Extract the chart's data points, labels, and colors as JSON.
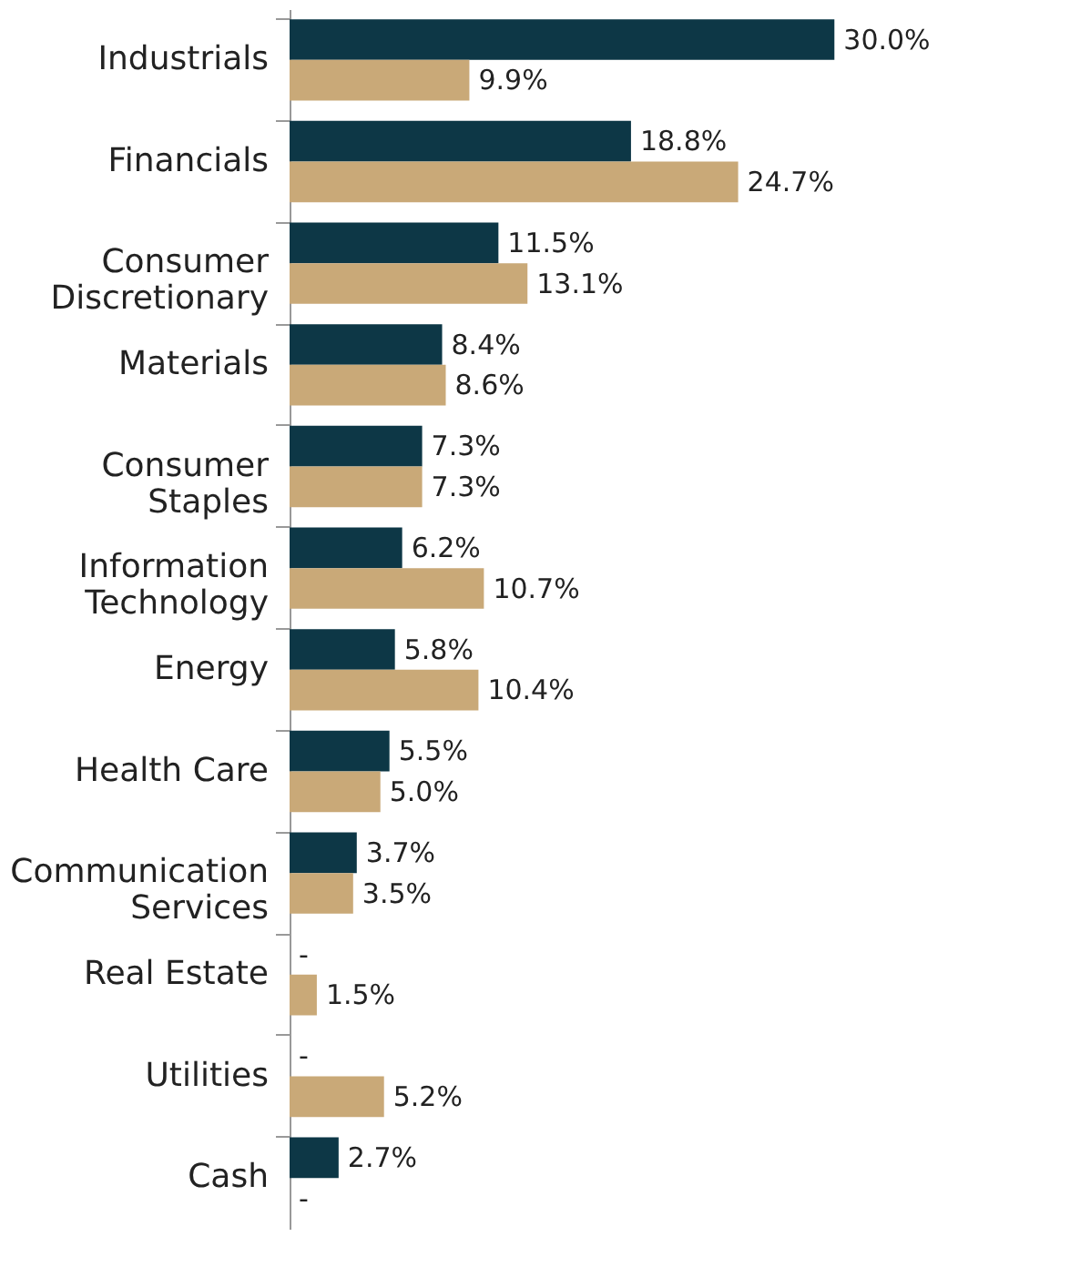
{
  "chart_data": {
    "type": "bar",
    "orientation": "horizontal",
    "grid": false,
    "legend": false,
    "categories": [
      "Industrials",
      "Financials",
      "Consumer Discretionary",
      "Materials",
      "Consumer Staples",
      "Information Technology",
      "Energy",
      "Health Care",
      "Communication Services",
      "Real Estate",
      "Utilities",
      "Cash"
    ],
    "series": [
      {
        "color": "#0d3746",
        "values": [
          30.0,
          18.8,
          11.5,
          8.4,
          7.3,
          6.2,
          5.8,
          5.5,
          3.7,
          null,
          null,
          2.7
        ],
        "value_labels": [
          "30.0%",
          "18.8%",
          "11.5%",
          "8.4%",
          "7.3%",
          "6.2%",
          "5.8%",
          "5.5%",
          "3.7%",
          "-",
          "-",
          "2.7%"
        ]
      },
      {
        "color": "#c9a978",
        "values": [
          9.9,
          24.7,
          13.1,
          8.6,
          7.3,
          10.7,
          10.4,
          5.0,
          3.5,
          1.5,
          5.2,
          null
        ],
        "value_labels": [
          "9.9%",
          "24.7%",
          "13.1%",
          "8.6%",
          "7.3%",
          "10.7%",
          "10.4%",
          "5.0%",
          "3.5%",
          "1.5%",
          "5.2%",
          "-"
        ]
      }
    ]
  }
}
